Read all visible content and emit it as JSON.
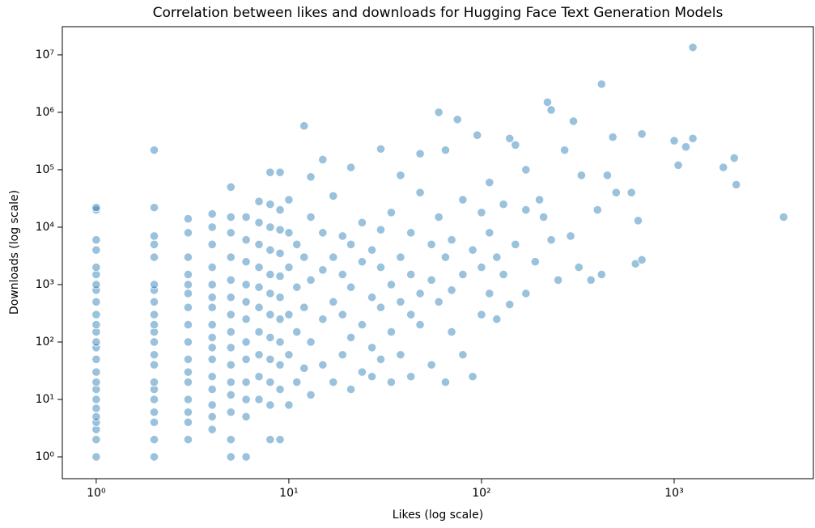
{
  "chart_data": {
    "type": "scatter",
    "title": "Correlation between likes and downloads for Hugging Face Text Generation Models",
    "x_label": "Likes (log scale)",
    "y_label": "Downloads (log scale)",
    "x_scale": "log",
    "y_scale": "log",
    "color": "#1f77b4",
    "xlim": [
      0.667,
      5280
    ],
    "ylim": [
      0.417,
      31000000
    ],
    "xticks": [
      {
        "value": 1,
        "label": "10⁰"
      },
      {
        "value": 10,
        "label": "10¹"
      },
      {
        "value": 100,
        "label": "10²"
      },
      {
        "value": 1000,
        "label": "10³"
      }
    ],
    "yticks": [
      {
        "value": 1,
        "label": "10⁰"
      },
      {
        "value": 10,
        "label": "10¹"
      },
      {
        "value": 100,
        "label": "10²"
      },
      {
        "value": 1000,
        "label": "10³"
      },
      {
        "value": 10000,
        "label": "10⁴"
      },
      {
        "value": 100000,
        "label": "10⁵"
      },
      {
        "value": 1000000,
        "label": "10⁶"
      },
      {
        "value": 10000000,
        "label": "10⁷"
      }
    ],
    "x": [
      1,
      1,
      1,
      1,
      1,
      1,
      1,
      1,
      1,
      1,
      1,
      1,
      1,
      1,
      1,
      1,
      1,
      1,
      1,
      1,
      1,
      1,
      1,
      1,
      1,
      2,
      2,
      2,
      2,
      2,
      2,
      2,
      2,
      2,
      2,
      2,
      2,
      2,
      2,
      2,
      2,
      2,
      2,
      2,
      2,
      2,
      3,
      3,
      3,
      3,
      3,
      3,
      3,
      3,
      3,
      3,
      3,
      3,
      3,
      3,
      3,
      3,
      4,
      4,
      4,
      4,
      4,
      4,
      4,
      4,
      4,
      4,
      4,
      4,
      4,
      4,
      4,
      4,
      5,
      5,
      5,
      5,
      5,
      5,
      5,
      5,
      5,
      5,
      5,
      5,
      5,
      5,
      5,
      6,
      6,
      6,
      6,
      6,
      6,
      6,
      6,
      6,
      6,
      6,
      6,
      7,
      7,
      7,
      7,
      7,
      7,
      7,
      7,
      7,
      7,
      8,
      8,
      8,
      8,
      8,
      8,
      8,
      8,
      8,
      8,
      8,
      8,
      9,
      9,
      9,
      9,
      9,
      9,
      9,
      9,
      9,
      9,
      9,
      10,
      10,
      10,
      10,
      10,
      10,
      11,
      11,
      11,
      11,
      12,
      12,
      12,
      12,
      13,
      13,
      13,
      13,
      13,
      15,
      15,
      15,
      15,
      15,
      17,
      17,
      17,
      17,
      19,
      19,
      19,
      19,
      21,
      21,
      21,
      21,
      21,
      24,
      24,
      24,
      24,
      27,
      27,
      27,
      27,
      30,
      30,
      30,
      30,
      30,
      34,
      34,
      34,
      34,
      38,
      38,
      38,
      38,
      43,
      43,
      43,
      43,
      48,
      48,
      48,
      48,
      55,
      55,
      55,
      60,
      60,
      60,
      65,
      65,
      65,
      70,
      70,
      70,
      75,
      80,
      80,
      80,
      90,
      90,
      95,
      100,
      100,
      100,
      110,
      110,
      110,
      120,
      120,
      130,
      130,
      140,
      140,
      150,
      150,
      170,
      170,
      170,
      190,
      200,
      210,
      220,
      230,
      230,
      250,
      270,
      290,
      300,
      320,
      330,
      370,
      400,
      420,
      420,
      450,
      480,
      500,
      600,
      630,
      650,
      680,
      680,
      1000,
      1050,
      1150,
      1250,
      1250,
      1800,
      2050,
      2100,
      3700
    ],
    "values": [
      1,
      2,
      3,
      4,
      5,
      7,
      10,
      15,
      20,
      30,
      50,
      80,
      100,
      150,
      200,
      300,
      500,
      800,
      1000,
      1500,
      2000,
      4000,
      6000,
      20000,
      22000,
      1,
      2,
      4,
      6,
      10,
      15,
      20,
      40,
      60,
      100,
      150,
      200,
      300,
      500,
      800,
      1000,
      3000,
      5000,
      7000,
      22000,
      220000,
      2,
      4,
      6,
      10,
      20,
      30,
      50,
      100,
      200,
      400,
      700,
      1000,
      1500,
      3000,
      8000,
      14000,
      3,
      5,
      8,
      15,
      25,
      50,
      80,
      120,
      200,
      400,
      600,
      1000,
      2000,
      5000,
      10000,
      17000,
      1,
      2,
      6,
      12,
      20,
      40,
      80,
      150,
      300,
      600,
      1200,
      3000,
      8000,
      15000,
      50000,
      1,
      5,
      10,
      20,
      50,
      100,
      250,
      500,
      1000,
      2500,
      6000,
      15000,
      10,
      25,
      60,
      150,
      400,
      900,
      2000,
      5000,
      12000,
      28000,
      2,
      8,
      20,
      50,
      120,
      300,
      700,
      1500,
      4000,
      10000,
      25000,
      90000,
      2,
      15,
      40,
      100,
      250,
      600,
      1400,
      3500,
      9000,
      20000,
      90000,
      8,
      60,
      300,
      2000,
      8000,
      30000,
      20,
      150,
      900,
      5000,
      35,
      400,
      3000,
      580000,
      12,
      100,
      1200,
      15000,
      75000,
      40,
      250,
      1800,
      8000,
      150000,
      20,
      500,
      3000,
      35000,
      60,
      300,
      1500,
      7000,
      15,
      120,
      900,
      5000,
      110000,
      30,
      200,
      2500,
      12000,
      25,
      80,
      600,
      4000,
      230000,
      50,
      400,
      2000,
      9000,
      20,
      150,
      1000,
      18000,
      60,
      500,
      3000,
      80000,
      25,
      300,
      1500,
      8000,
      200,
      700,
      190000,
      40000,
      40,
      1200,
      5000,
      500,
      1000000,
      15000,
      20,
      3000,
      220000,
      150,
      800,
      6000,
      750000,
      60,
      1500,
      30000,
      25,
      4000,
      400000,
      300,
      2000,
      18000,
      700,
      8000,
      60000,
      250,
      3000,
      1500,
      25000,
      450,
      350000,
      5000,
      270000,
      700,
      20000,
      100000,
      2500,
      30000,
      15000,
      1500000,
      1100000,
      6000,
      1200,
      220000,
      7000,
      700000,
      2000,
      80000,
      1200,
      20000,
      3100000,
      1500,
      80000,
      370000,
      40000,
      40000,
      2300,
      13000,
      2700,
      420000,
      320000,
      120000,
      250000,
      13500000,
      350000,
      110000,
      160000,
      55000,
      15000
    ]
  }
}
